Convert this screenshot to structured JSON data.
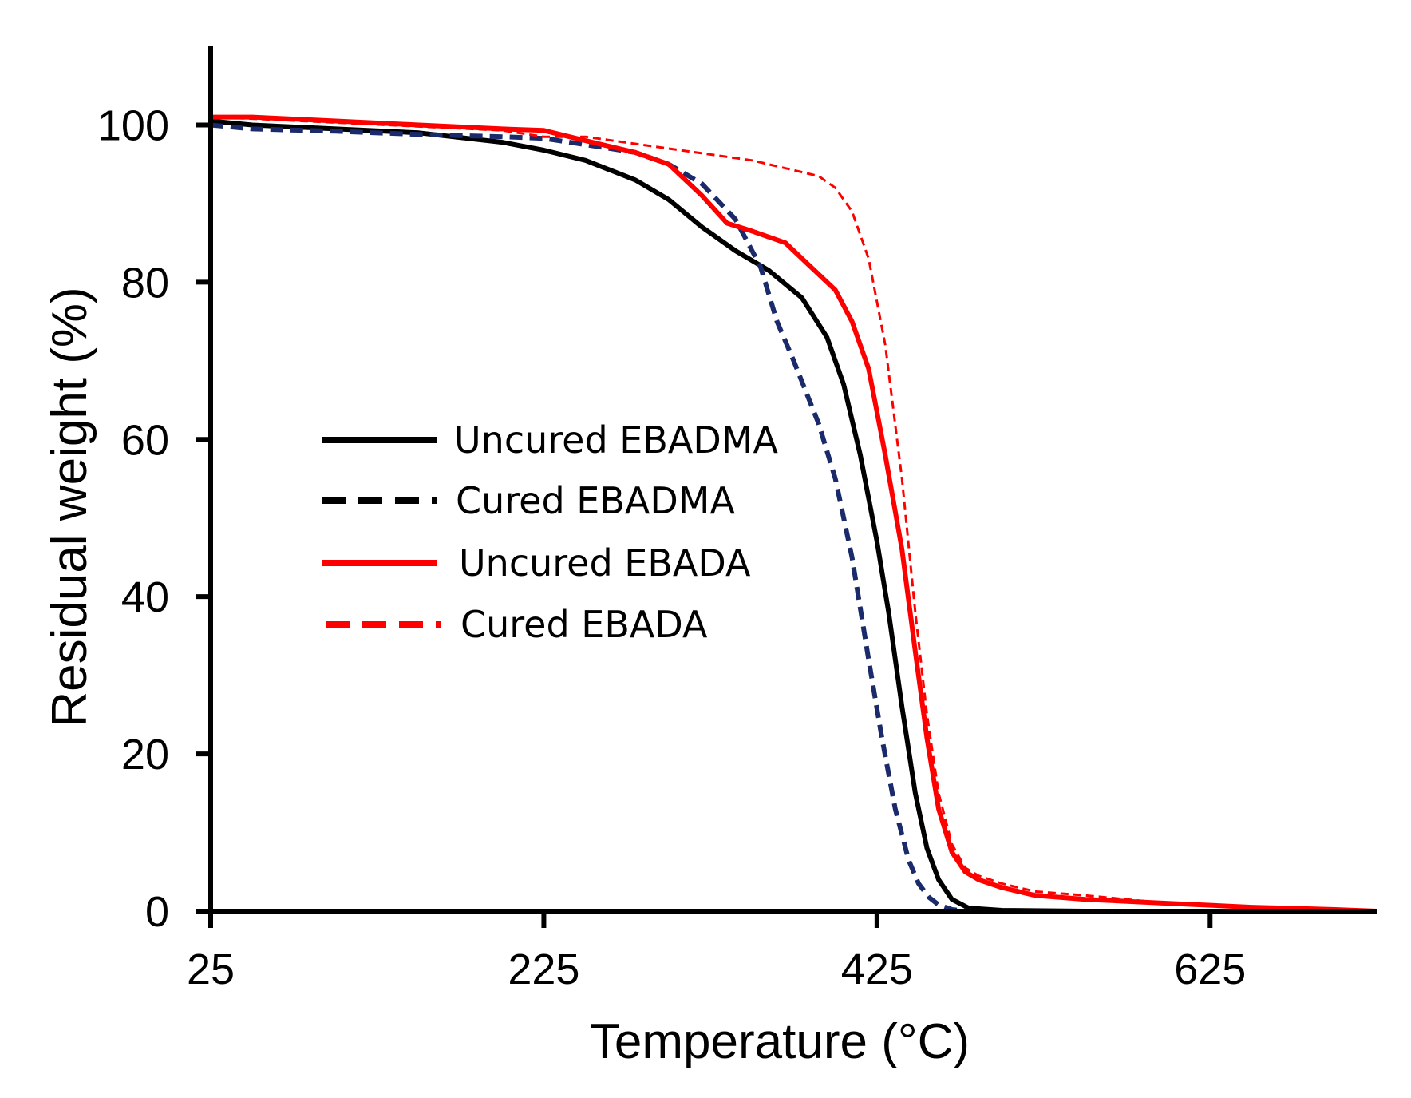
{
  "chart_data": {
    "type": "line",
    "title": "",
    "xlabel": "Temperature (°C)",
    "ylabel": "Residual weight (%)",
    "xlim": [
      25,
      725
    ],
    "ylim": [
      0,
      110
    ],
    "xticks": [
      25,
      225,
      425,
      625
    ],
    "yticks": [
      0,
      20,
      40,
      60,
      80,
      100
    ],
    "xtick_labels": [
      "25",
      "225",
      "425",
      "625"
    ],
    "ytick_labels": [
      "0",
      "20",
      "40",
      "60",
      "80",
      "100"
    ],
    "grid": false,
    "legend_position": "center-left",
    "series": [
      {
        "name": "Uncured EBADMA",
        "color": "#000000",
        "style": "solid",
        "x": [
          25,
          50,
          100,
          150,
          200,
          225,
          250,
          280,
          300,
          320,
          340,
          360,
          380,
          395,
          405,
          415,
          425,
          432,
          440,
          448,
          455,
          462,
          470,
          480,
          500,
          550,
          600,
          650,
          700,
          725
        ],
        "y": [
          100.5,
          100,
          99.5,
          99,
          97.8,
          96.8,
          95.5,
          93,
          90.5,
          87,
          84,
          81.5,
          78,
          73,
          67,
          58,
          47,
          38,
          26,
          15,
          8,
          4,
          1.5,
          0.4,
          0.1,
          0,
          0,
          0,
          0,
          0
        ]
      },
      {
        "name": "Cured EBADMA",
        "color": "#1a2a6b",
        "style": "dashed",
        "x": [
          25,
          50,
          100,
          150,
          200,
          225,
          250,
          280,
          300,
          320,
          340,
          355,
          365,
          375,
          390,
          400,
          410,
          420,
          428,
          436,
          444,
          450,
          456,
          462,
          470,
          480,
          500,
          550,
          600,
          650,
          700,
          725
        ],
        "y": [
          100,
          99.5,
          99.2,
          98.8,
          98.5,
          98.3,
          97.5,
          96.5,
          95,
          92.5,
          88,
          82,
          75,
          70,
          62,
          55,
          45,
          32,
          22,
          13,
          6.5,
          3.5,
          1.8,
          0.8,
          0.2,
          0,
          0,
          0,
          0,
          0,
          0,
          0
        ]
      },
      {
        "name": "Uncured EBADA",
        "color": "#ff0000",
        "style": "solid",
        "x": [
          25,
          50,
          100,
          150,
          200,
          225,
          250,
          280,
          300,
          320,
          335,
          350,
          370,
          385,
          400,
          410,
          420,
          430,
          440,
          448,
          455,
          462,
          470,
          478,
          486,
          500,
          520,
          550,
          600,
          650,
          700,
          725
        ],
        "y": [
          101,
          101,
          100.5,
          100,
          99.5,
          99.3,
          98,
          96.5,
          95,
          91,
          87.5,
          86.5,
          85,
          82,
          79,
          75,
          69,
          58,
          46,
          33,
          22,
          13,
          7.5,
          5,
          4,
          3,
          2,
          1.5,
          1,
          0.5,
          0.2,
          0
        ]
      },
      {
        "name": "Cured EBADA",
        "color": "#ff0000",
        "style": "dashed",
        "x": [
          25,
          50,
          100,
          150,
          200,
          225,
          250,
          300,
          350,
          390,
          400,
          410,
          420,
          430,
          440,
          448,
          455,
          462,
          470,
          478,
          486,
          500,
          520,
          550,
          600,
          650,
          700,
          725
        ],
        "y": [
          101,
          100.8,
          100.3,
          99.8,
          99.3,
          98.5,
          98.5,
          97,
          95.5,
          93.5,
          92,
          89,
          83,
          72,
          55,
          38,
          25,
          15,
          8.5,
          5.5,
          4.5,
          3.5,
          2.5,
          2,
          1,
          0.5,
          0.2,
          0
        ]
      }
    ]
  }
}
